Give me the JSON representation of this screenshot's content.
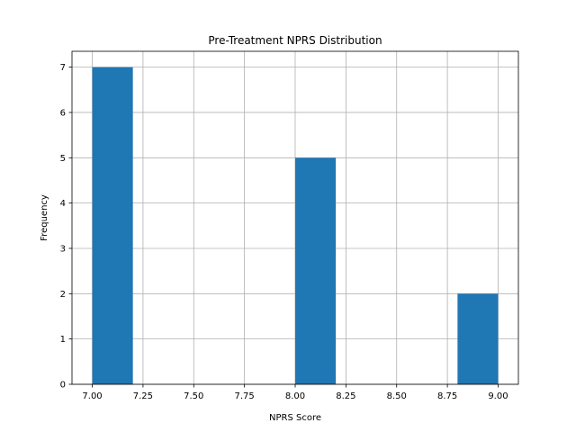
{
  "chart_data": {
    "type": "histogram",
    "title": "Pre-Treatment NPRS Distribution",
    "xlabel": "NPRS Score",
    "ylabel": "Frequency",
    "xlim": [
      6.9,
      9.1
    ],
    "ylim": [
      0,
      7.35
    ],
    "grid": true,
    "bar_color": "#1f77b4",
    "bins": [
      {
        "start": 7.0,
        "end": 7.2,
        "count": 7
      },
      {
        "start": 7.2,
        "end": 7.4,
        "count": 0
      },
      {
        "start": 7.4,
        "end": 7.6,
        "count": 0
      },
      {
        "start": 7.6,
        "end": 7.8,
        "count": 0
      },
      {
        "start": 7.8,
        "end": 8.0,
        "count": 0
      },
      {
        "start": 8.0,
        "end": 8.2,
        "count": 5
      },
      {
        "start": 8.2,
        "end": 8.4,
        "count": 0
      },
      {
        "start": 8.4,
        "end": 8.6,
        "count": 0
      },
      {
        "start": 8.6,
        "end": 8.8,
        "count": 0
      },
      {
        "start": 8.8,
        "end": 9.0,
        "count": 2
      }
    ],
    "x_ticks": [
      "7.00",
      "7.25",
      "7.50",
      "7.75",
      "8.00",
      "8.25",
      "8.50",
      "8.75",
      "9.00"
    ],
    "y_ticks": [
      "0",
      "1",
      "2",
      "3",
      "4",
      "5",
      "6",
      "7"
    ]
  }
}
